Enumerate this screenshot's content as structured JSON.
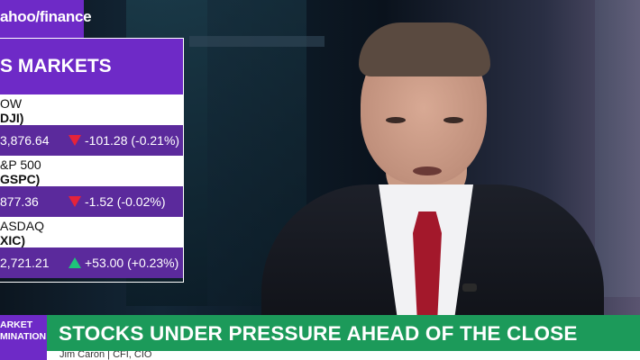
{
  "logo": {
    "text": "ahoo/finance"
  },
  "markets": {
    "header": "S MARKETS",
    "items": [
      {
        "name": "OW",
        "symbol": "DJI)",
        "price": "3,876.64",
        "direction": "down",
        "change": "-101.28 (-0.21%)"
      },
      {
        "name": "&P 500",
        "symbol": "GSPC)",
        "price": "877.36",
        "direction": "down",
        "change": "-1.52 (-0.02%)"
      },
      {
        "name": "ASDAQ",
        "symbol": "XIC)",
        "price": "2,721.21",
        "direction": "up",
        "change": "+53.00 (+0.23%)"
      }
    ]
  },
  "lower_third": {
    "segment_line1": "ARKET",
    "segment_line2": "MINATION",
    "headline": "STOCKS UNDER PRESSURE AHEAD OF THE CLOSE",
    "subline": "Jim Caron | CFI, CIO"
  },
  "colors": {
    "brand_purple": "#6e2ac7",
    "panel_purple": "#5b2a9c",
    "headline_green": "#1c9a5a",
    "down_red": "#e5233a",
    "up_green": "#1fc47a"
  }
}
